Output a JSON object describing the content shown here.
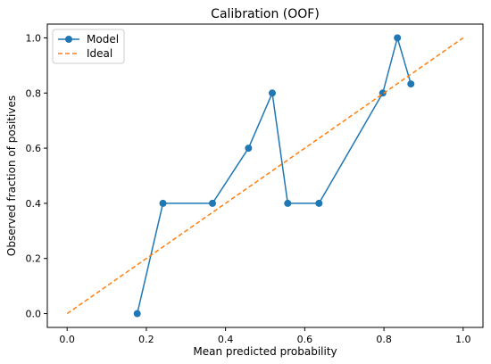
{
  "chart_data": {
    "type": "line",
    "title": "Calibration (OOF)",
    "xlabel": "Mean predicted probability",
    "ylabel": "Observed fraction of positives",
    "xlim": [
      -0.05,
      1.05
    ],
    "ylim": [
      -0.05,
      1.05
    ],
    "xticks": [
      0.0,
      0.2,
      0.4,
      0.6,
      0.8,
      1.0
    ],
    "yticks": [
      0.0,
      0.2,
      0.4,
      0.6,
      0.8,
      1.0
    ],
    "xtick_labels": [
      "0.0",
      "0.2",
      "0.4",
      "0.6",
      "0.8",
      "1.0"
    ],
    "ytick_labels": [
      "0.0",
      "0.2",
      "0.4",
      "0.6",
      "0.8",
      "1.0"
    ],
    "grid": false,
    "legend": "top-left",
    "series": [
      {
        "name": "Model",
        "style": "solid-with-circle-markers",
        "color": "#1f77b4",
        "x": [
          0.177,
          0.242,
          0.367,
          0.458,
          0.518,
          0.557,
          0.636,
          0.797,
          0.834,
          0.868
        ],
        "y": [
          0.0,
          0.4,
          0.4,
          0.6,
          0.8,
          0.4,
          0.4,
          0.8,
          1.0,
          0.833
        ]
      },
      {
        "name": "Ideal",
        "style": "dashed",
        "color": "#ff7f0e",
        "x": [
          0.0,
          1.0
        ],
        "y": [
          0.0,
          1.0
        ]
      }
    ]
  }
}
